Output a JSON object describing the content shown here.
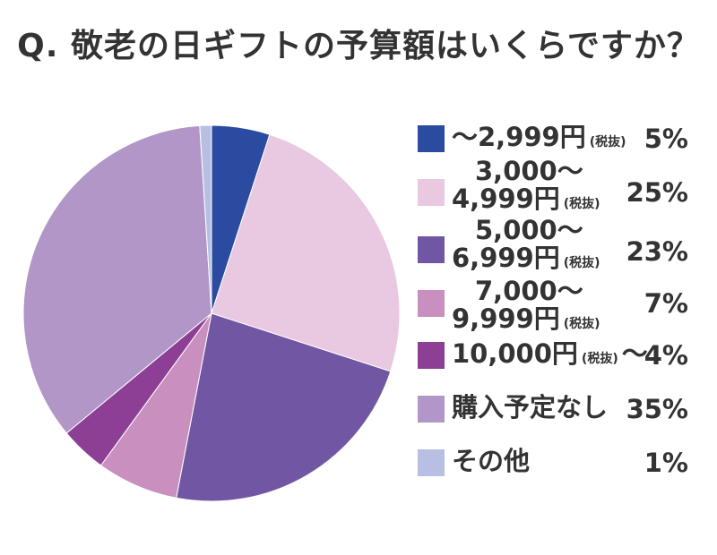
{
  "chart_data": {
    "type": "pie",
    "title": "Q. 敬老の日ギフトの予算額はいくらですか？",
    "start_angle_deg": 0,
    "direction": "clockwise",
    "legend_position": "right",
    "slices": [
      {
        "label_parts": [
          "〜2,999円",
          "(税抜)"
        ],
        "value": 5,
        "pct_label": "5%",
        "color": "#2a4b9f"
      },
      {
        "label_parts": [
          "3,000〜",
          "4,999円",
          "(税抜)"
        ],
        "value": 25,
        "pct_label": "25%",
        "color": "#e9c8e1"
      },
      {
        "label_parts": [
          "5,000〜",
          "6,999円",
          "(税抜)"
        ],
        "value": 23,
        "pct_label": "23%",
        "color": "#7157a3"
      },
      {
        "label_parts": [
          "7,000〜",
          "9,999円",
          "(税抜)"
        ],
        "value": 7,
        "pct_label": "7%",
        "color": "#c98fbf"
      },
      {
        "label_parts": [
          "10,000円",
          "(税抜)",
          "〜"
        ],
        "value": 4,
        "pct_label": "4%",
        "color": "#8d3e95"
      },
      {
        "label_parts": [
          "購入予定なし"
        ],
        "value": 35,
        "pct_label": "35%",
        "color": "#b196c7"
      },
      {
        "label_parts": [
          "その他"
        ],
        "value": 1,
        "pct_label": "1%",
        "color": "#b7c0e3"
      }
    ]
  }
}
